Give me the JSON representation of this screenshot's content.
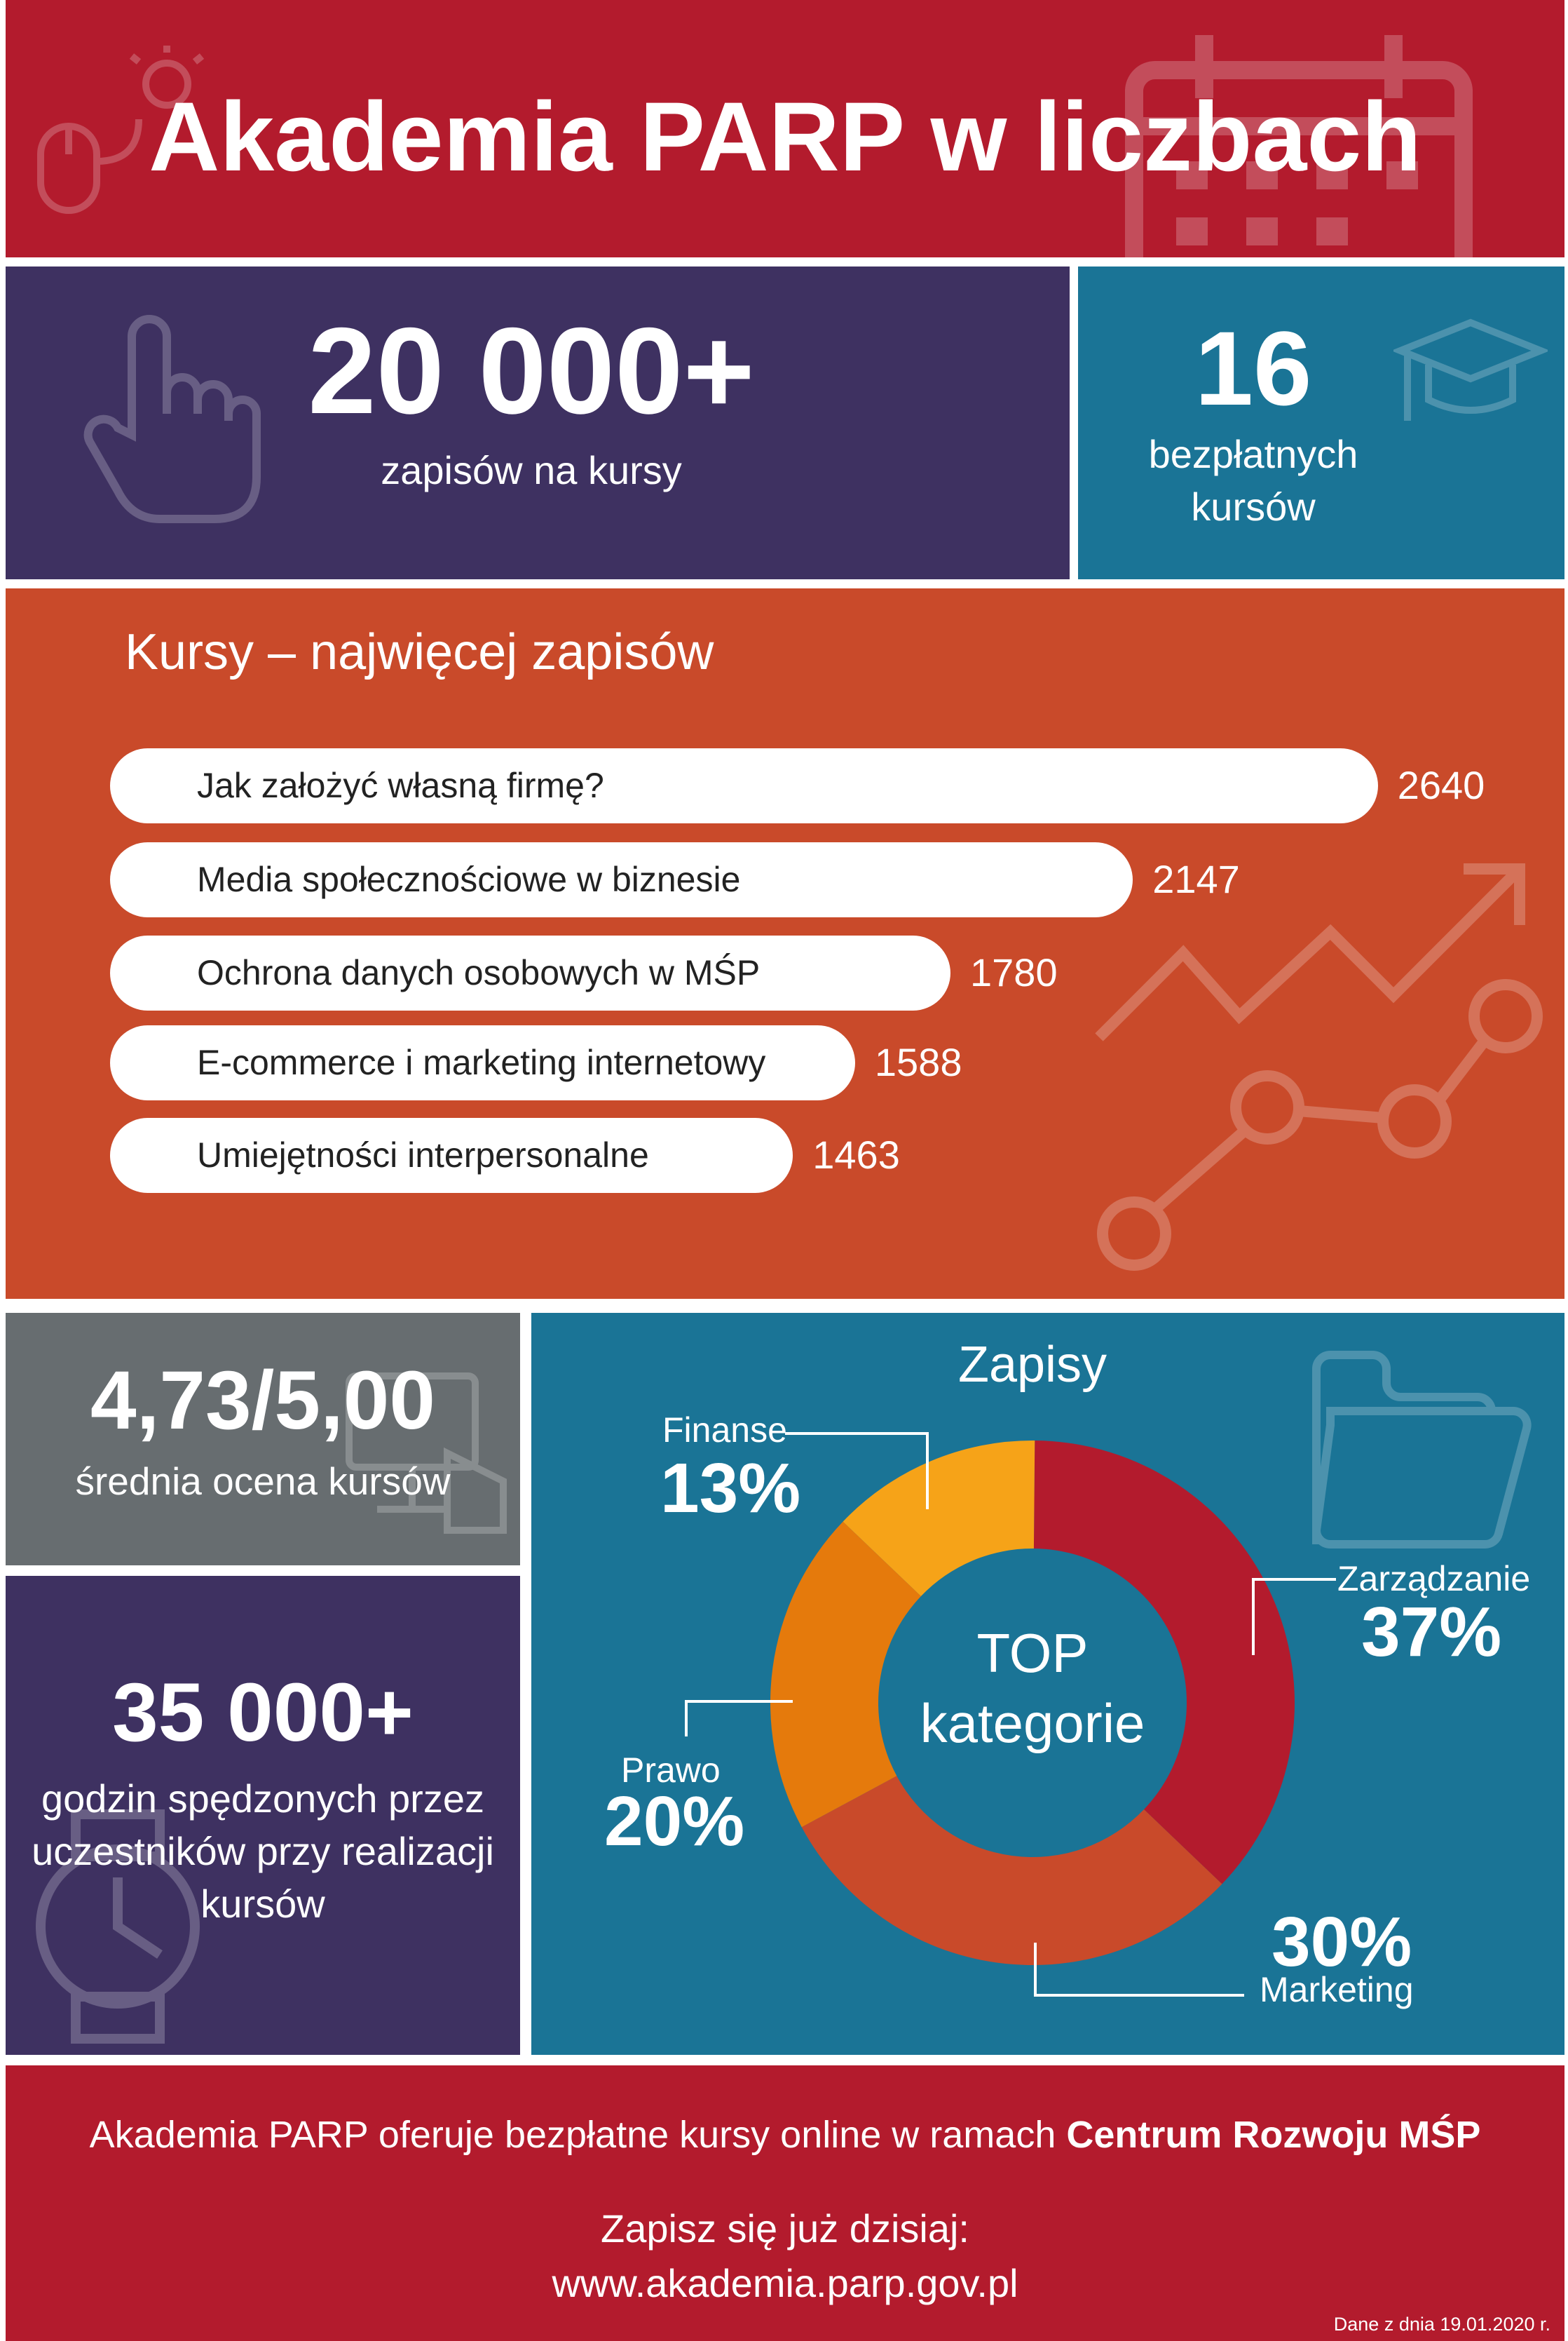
{
  "header": {
    "title": "Akademia PARP w liczbach"
  },
  "stats": {
    "enrollments": {
      "value": "20 000+",
      "label": "zapisów na kursy"
    },
    "free_courses": {
      "value": "16",
      "label_line1": "bezpłatnych",
      "label_line2": "kursów"
    },
    "rating": {
      "value": "4,73/5,00",
      "label": "średnia ocena kursów"
    },
    "hours": {
      "value": "35 000+",
      "label_line1": "godzin spędzonych przez",
      "label_line2": "uczestników przy realizacji",
      "label_line3": "kursów"
    }
  },
  "courses": {
    "title": "Kursy – najwięcej zapisów",
    "items": [
      {
        "name": "Jak założyć własną firmę?",
        "value": 2640
      },
      {
        "name": "Media społecznościowe w biznesie",
        "value": 2147
      },
      {
        "name": "Ochrona danych osobowych w MŚP",
        "value": 1780
      },
      {
        "name": "E-commerce i marketing internetowy",
        "value": 1588
      },
      {
        "name": "Umiejętności interpersonalne",
        "value": 1463
      }
    ]
  },
  "chart_data": {
    "type": "pie",
    "title": "Zapisy",
    "center_line1": "TOP",
    "center_line2": "kategorie",
    "categories": [
      "Zarządzanie",
      "Marketing",
      "Prawo",
      "Finanse"
    ],
    "values": [
      37,
      30,
      20,
      13
    ],
    "labels": [
      "37%",
      "30%",
      "20%",
      "13%"
    ],
    "colors": [
      "#b31b2d",
      "#c94a2a",
      "#e57a0c",
      "#f6a318"
    ]
  },
  "footer": {
    "text_prefix": "Akademia PARP oferuje bezpłatne kursy online w ramach ",
    "text_bold": "Centrum Rozwoju MŚP",
    "cta": "Zapisz się już dzisiaj:",
    "url": "www.akademia.parp.gov.pl",
    "date_note": "Dane z dnia 19.01.2020 r."
  },
  "colors": {
    "red": "#b31b2d",
    "purple": "#3e3161",
    "teal": "#1a7496",
    "orange": "#c94a2a",
    "gray": "#676d70"
  }
}
